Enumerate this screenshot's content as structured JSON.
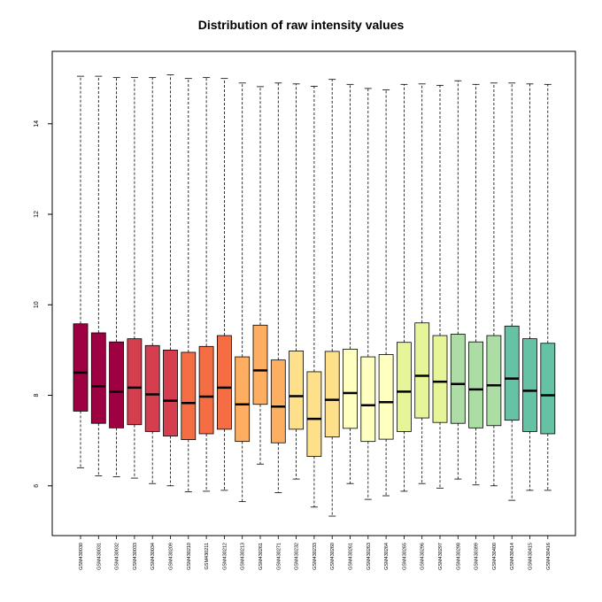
{
  "chart_data": {
    "type": "box",
    "title": "Distribution of raw intensity values",
    "xlabel": "",
    "ylabel": "",
    "ylim": [
      4.9,
      15.6
    ],
    "y_ticks": [
      6,
      8,
      10,
      12,
      14
    ],
    "categories": [
      "GSM430030",
      "GSM430031",
      "GSM430032",
      "GSM430033",
      "GSM430034",
      "GSM430209",
      "GSM430210",
      "GSM430211",
      "GSM430212",
      "GSM430213",
      "GSM430261",
      "GSM430271",
      "GSM430232",
      "GSM430233",
      "GSM430260",
      "GSM430261",
      "GSM430263",
      "GSM430264",
      "GSM430265",
      "GSM430296",
      "GSM430297",
      "GSM430298",
      "GSM430399",
      "GSM430400",
      "GSM430414",
      "GSM430415",
      "GSM430416"
    ],
    "boxes": [
      {
        "min": 6.4,
        "q1": 7.65,
        "median": 8.5,
        "q3": 9.58,
        "max": 15.05,
        "color": "#9e0142"
      },
      {
        "min": 6.22,
        "q1": 7.38,
        "median": 8.2,
        "q3": 9.38,
        "max": 15.05,
        "color": "#9e0142"
      },
      {
        "min": 6.2,
        "q1": 7.28,
        "median": 8.08,
        "q3": 9.18,
        "max": 15.02,
        "color": "#9e0142"
      },
      {
        "min": 6.17,
        "q1": 7.35,
        "median": 8.17,
        "q3": 9.25,
        "max": 15.02,
        "color": "#d53e4f"
      },
      {
        "min": 6.05,
        "q1": 7.2,
        "median": 8.02,
        "q3": 9.1,
        "max": 15.02,
        "color": "#d53e4f"
      },
      {
        "min": 6.0,
        "q1": 7.1,
        "median": 7.88,
        "q3": 9.0,
        "max": 15.08,
        "color": "#d53e4f"
      },
      {
        "min": 5.87,
        "q1": 7.02,
        "median": 7.83,
        "q3": 8.95,
        "max": 15.0,
        "color": "#f46d43"
      },
      {
        "min": 5.88,
        "q1": 7.15,
        "median": 7.97,
        "q3": 9.08,
        "max": 15.02,
        "color": "#f46d43"
      },
      {
        "min": 5.9,
        "q1": 7.25,
        "median": 8.17,
        "q3": 9.32,
        "max": 15.0,
        "color": "#f46d43"
      },
      {
        "min": 5.65,
        "q1": 6.98,
        "median": 7.8,
        "q3": 8.85,
        "max": 14.9,
        "color": "#fdae61"
      },
      {
        "min": 6.48,
        "q1": 7.8,
        "median": 8.55,
        "q3": 9.55,
        "max": 14.82,
        "color": "#fdae61"
      },
      {
        "min": 5.85,
        "q1": 6.95,
        "median": 7.75,
        "q3": 8.78,
        "max": 14.9,
        "color": "#fdae61"
      },
      {
        "min": 6.15,
        "q1": 7.25,
        "median": 7.98,
        "q3": 8.98,
        "max": 14.88,
        "color": "#fee08b"
      },
      {
        "min": 5.53,
        "q1": 6.65,
        "median": 7.48,
        "q3": 8.52,
        "max": 14.83,
        "color": "#fee08b"
      },
      {
        "min": 5.33,
        "q1": 7.08,
        "median": 7.9,
        "q3": 8.97,
        "max": 14.98,
        "color": "#fee08b"
      },
      {
        "min": 6.05,
        "q1": 7.27,
        "median": 8.05,
        "q3": 9.02,
        "max": 14.87,
        "color": "#ffffbf"
      },
      {
        "min": 5.7,
        "q1": 6.98,
        "median": 7.78,
        "q3": 8.85,
        "max": 14.78,
        "color": "#ffffbf"
      },
      {
        "min": 5.78,
        "q1": 7.03,
        "median": 7.85,
        "q3": 8.9,
        "max": 14.75,
        "color": "#ffffbf"
      },
      {
        "min": 5.88,
        "q1": 7.2,
        "median": 8.08,
        "q3": 9.17,
        "max": 14.87,
        "color": "#e6f598"
      },
      {
        "min": 6.05,
        "q1": 7.5,
        "median": 8.43,
        "q3": 9.6,
        "max": 14.88,
        "color": "#e6f598"
      },
      {
        "min": 5.95,
        "q1": 7.4,
        "median": 8.3,
        "q3": 9.32,
        "max": 14.85,
        "color": "#e6f598"
      },
      {
        "min": 6.15,
        "q1": 7.38,
        "median": 8.25,
        "q3": 9.35,
        "max": 14.95,
        "color": "#abdda4"
      },
      {
        "min": 6.02,
        "q1": 7.28,
        "median": 8.13,
        "q3": 9.18,
        "max": 14.87,
        "color": "#abdda4"
      },
      {
        "min": 6.0,
        "q1": 7.33,
        "median": 8.22,
        "q3": 9.32,
        "max": 14.9,
        "color": "#abdda4"
      },
      {
        "min": 5.68,
        "q1": 7.45,
        "median": 8.37,
        "q3": 9.53,
        "max": 14.9,
        "color": "#66c2a5"
      },
      {
        "min": 5.9,
        "q1": 7.2,
        "median": 8.1,
        "q3": 9.25,
        "max": 14.88,
        "color": "#66c2a5"
      },
      {
        "min": 5.9,
        "q1": 7.15,
        "median": 8.0,
        "q3": 9.15,
        "max": 14.87,
        "color": "#66c2a5"
      }
    ],
    "grid": false,
    "legend": "none"
  }
}
